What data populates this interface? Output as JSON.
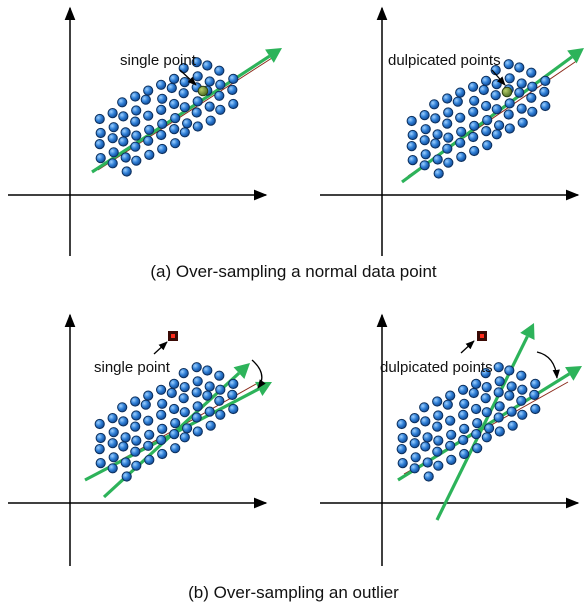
{
  "colors": {
    "axis": "#000000",
    "arrow": "#2db35a",
    "point_fill": "#2f7fd6",
    "point_highlight": "#9ed0ff",
    "point_stroke": "#0c2f5c",
    "duplicated_point": "#6b8f34",
    "outlier_outer": "#3a0a05",
    "outlier_inner": "#ff2a1a",
    "thin_line": "#8a2a1a"
  },
  "panels": [
    {
      "id": "a-left",
      "label": "single point"
    },
    {
      "id": "a-right",
      "label": "dulpicated points"
    },
    {
      "id": "b-left",
      "label": "single point"
    },
    {
      "id": "b-right",
      "label": "dulpicated points"
    }
  ],
  "captions": {
    "a": "(a) Over-sampling a normal data point",
    "b": "(b) Over-sampling an outlier"
  },
  "icons": [
    "pointer-arrow-icon",
    "rotation-arrow-icon",
    "outlier-point-icon"
  ]
}
